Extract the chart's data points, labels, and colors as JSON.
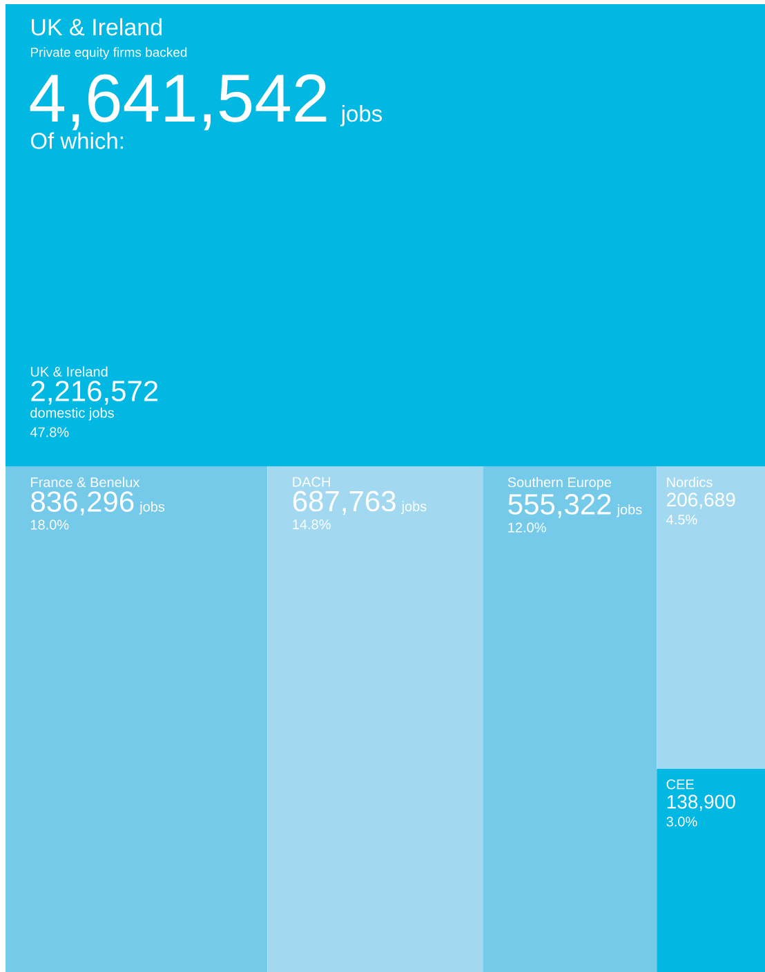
{
  "chart_data": {
    "type": "other",
    "title": "UK & Ireland",
    "subtitle": "Private equity firms backed",
    "categories": [
      "UK & Ireland",
      "France & Benelux",
      "DACH",
      "Southern Europe",
      "Nordics",
      "CEE"
    ],
    "values": [
      2216572,
      836296,
      687763,
      555322,
      206689,
      138900
    ],
    "colors": [
      "#00b8e2",
      "#75c9e9",
      "#a2d9f0",
      "#75c9e9",
      "#a2d9f0",
      "#00b8e2"
    ],
    "value_labels": [
      "2,216,572",
      "836,296",
      "687,763",
      "555,322",
      "206,689",
      "138,900"
    ],
    "annotations": [
      "4,641,542",
      "jobs",
      "Of which:",
      "domestic jobs",
      "jobs",
      "jobs",
      "jobs",
      "47.8%",
      "18.0%",
      "14.8%",
      "12.0%",
      "4.5%",
      "3.0%"
    ]
  }
}
